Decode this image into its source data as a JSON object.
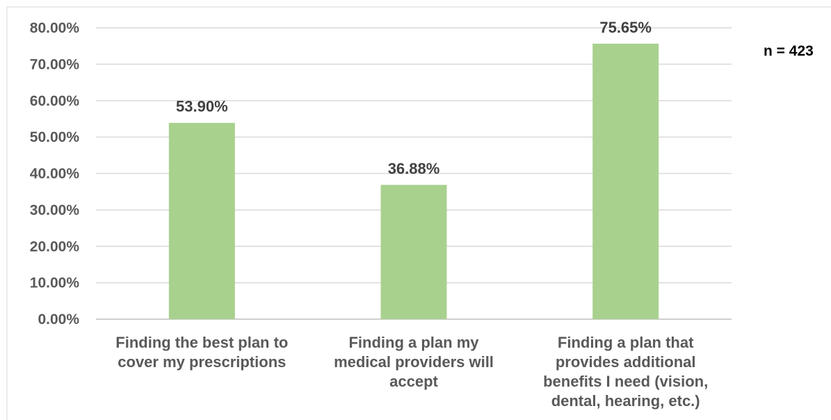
{
  "chart_data": {
    "type": "bar",
    "categories": [
      "Finding the best plan to cover my prescriptions",
      "Finding a plan my medical providers will accept",
      "Finding a plan that provides additional benefits I need (vision, dental, hearing, etc.)"
    ],
    "category_lines": [
      [
        "Finding the best plan to",
        "cover my prescriptions"
      ],
      [
        "Finding a plan my",
        "medical providers will",
        "accept"
      ],
      [
        "Finding a plan that",
        "provides additional",
        "benefits I need (vision,",
        "dental, hearing, etc.)"
      ]
    ],
    "values": [
      53.9,
      36.88,
      75.65
    ],
    "data_labels": [
      "53.90%",
      "36.88%",
      "75.65%"
    ],
    "yticks": [
      "0.00%",
      "10.00%",
      "20.00%",
      "30.00%",
      "40.00%",
      "50.00%",
      "60.00%",
      "70.00%",
      "80.00%"
    ],
    "ylim": [
      0,
      80
    ],
    "grid": true,
    "annotation": "n = 423",
    "bar_color": "#a9d18e",
    "grid_color": "#d9d9d9"
  }
}
